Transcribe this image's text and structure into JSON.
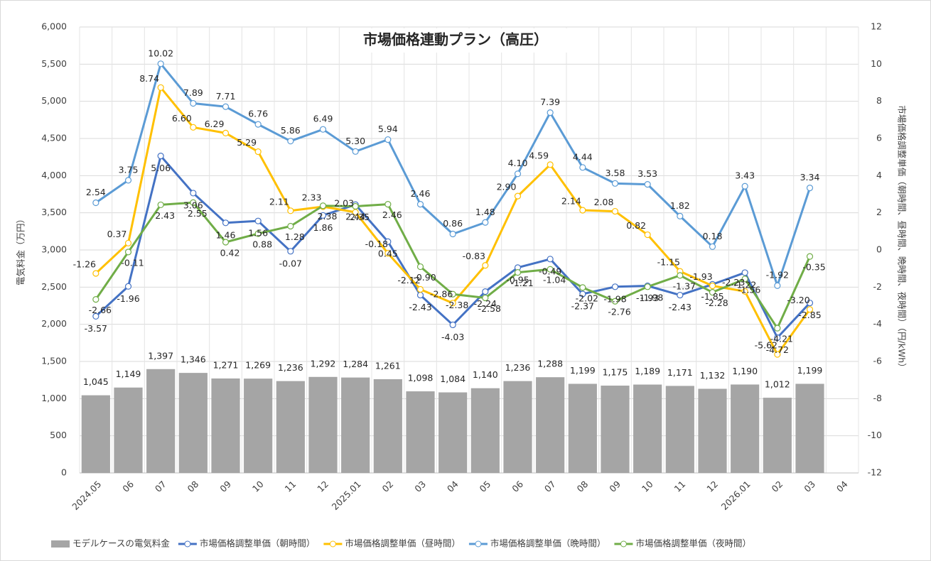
{
  "chart_data": {
    "type": "bar",
    "title": "市場価格連動プラン（高圧）",
    "y_label": "電気料金（万円）",
    "y2_label": "市場価格調整単価（朝時間、昼時間、晩時間、夜時間）（円/kWh）",
    "categories": [
      "2024.05",
      "06",
      "07",
      "08",
      "09",
      "10",
      "11",
      "12",
      "2025.01",
      "02",
      "03",
      "04",
      "05",
      "06",
      "07",
      "08",
      "09",
      "10",
      "11",
      "12",
      "2026.01",
      "02",
      "03",
      "04"
    ],
    "ylim": [
      0,
      6000
    ],
    "yticks": [
      0,
      500,
      {
        "value": 1000,
        "label": "1,000"
      },
      {
        "value": 1500,
        "label": "1,500"
      },
      {
        "value": 2000,
        "label": "2,000"
      },
      {
        "value": 2500,
        "label": "2,500"
      },
      {
        "value": 3000,
        "label": "3,000"
      },
      {
        "value": 3500,
        "label": "3,500"
      },
      {
        "value": 4000,
        "label": "4,000"
      },
      {
        "value": 4500,
        "label": "4,500"
      },
      {
        "value": 5000,
        "label": "5,000"
      },
      {
        "value": 5500,
        "label": "5,500"
      },
      {
        "value": 6000,
        "label": "6,000"
      }
    ],
    "y2lim": [
      -12,
      12
    ],
    "y2ticks": [
      -12,
      -10,
      -8,
      -6,
      -4,
      -2,
      0,
      2,
      4,
      6,
      8,
      10,
      12
    ],
    "grid": true,
    "legend": "bottom",
    "series": [
      {
        "name": "モデルケースの電気料金",
        "type": "bar",
        "color": "#a5a5a5",
        "values": [
          1045,
          1149,
          1397,
          1346,
          1271,
          1269,
          1236,
          1292,
          1284,
          1261,
          1098,
          1084,
          1140,
          1236,
          1288,
          1199,
          1175,
          1189,
          1171,
          1132,
          1190,
          1012,
          1199,
          null
        ],
        "value_labels": [
          "1,045",
          "1,149",
          "1,397",
          "1,346",
          "1,271",
          "1,269",
          "1,236",
          "1,292",
          "1,284",
          "1,261",
          "1,098",
          "1,084",
          "1,140",
          "1,236",
          "1,288",
          "1,199",
          "1,175",
          "1,189",
          "1,171",
          "1,132",
          "1,190",
          "1,012",
          "1,199",
          null
        ]
      },
      {
        "name": "市場価格調整単価（朝時間）",
        "type": "line",
        "axis": "y2",
        "color": "#4472c4",
        "values": [
          -3.57,
          -1.96,
          5.06,
          3.06,
          1.46,
          1.56,
          -0.07,
          1.86,
          2.44,
          0.45,
          -2.43,
          -4.03,
          -2.24,
          -0.95,
          -0.49,
          -2.37,
          -1.98,
          -1.93,
          -2.43,
          -1.85,
          -1.22,
          -4.72,
          -2.85,
          null
        ],
        "value_labels": [
          "-3.57",
          "-1.96",
          "5.06",
          "3.06",
          "1.46",
          "1.56",
          "-0.07",
          "1.86",
          "2.44",
          "0.45",
          "-2.43",
          "-4.03",
          "-2.24",
          "-0.95",
          "-0.49",
          "-2.37",
          "-1.98",
          "-1.93",
          "-2.43",
          "-1.85",
          "-1.22",
          "-4.72",
          "-2.85",
          null
        ]
      },
      {
        "name": "市場価格調整単価（昼時間）",
        "type": "line",
        "axis": "y2",
        "color": "#ffc000",
        "values": [
          -1.26,
          0.37,
          8.74,
          6.6,
          6.29,
          5.29,
          2.11,
          2.33,
          2.03,
          -0.18,
          -2.12,
          -2.86,
          -0.83,
          2.9,
          4.59,
          2.14,
          2.08,
          0.82,
          -1.15,
          -1.93,
          -2.23,
          -5.62,
          -3.2,
          null
        ],
        "value_labels": [
          "-1.26",
          "0.37",
          "8.74",
          "6.60",
          "6.29",
          "5.29",
          "2.11",
          "2.33",
          "2.03",
          "-0.18",
          "-2.12",
          "-2.86",
          "-0.83",
          "2.90",
          "4.59",
          "2.14",
          "2.08",
          "0.82",
          "-1.15",
          "-1.93",
          "-2.23",
          "-5.62",
          "-3.20",
          null
        ]
      },
      {
        "name": "市場価格調整単価（晩時間）",
        "type": "line",
        "axis": "y2",
        "color": "#5b9bd5",
        "values": [
          2.54,
          3.75,
          10.02,
          7.89,
          7.71,
          6.76,
          5.86,
          6.49,
          5.3,
          5.94,
          2.46,
          0.86,
          1.48,
          4.1,
          7.39,
          4.44,
          3.58,
          3.53,
          1.82,
          0.18,
          3.43,
          -1.92,
          3.34,
          null
        ],
        "value_labels": [
          "2.54",
          "3.75",
          "10.02",
          "7.89",
          "7.71",
          "6.76",
          "5.86",
          "6.49",
          "5.30",
          "5.94",
          "2.46",
          "0.86",
          "1.48",
          "4.10",
          "7.39",
          "4.44",
          "3.58",
          "3.53",
          "1.82",
          "0.18",
          "3.43",
          "-1.92",
          "3.34",
          null
        ]
      },
      {
        "name": "市場価格調整単価（夜時間）",
        "type": "line",
        "axis": "y2",
        "color": "#70ad47",
        "values": [
          -2.66,
          -0.11,
          2.43,
          2.55,
          0.42,
          0.88,
          1.28,
          2.38,
          2.35,
          2.46,
          -0.9,
          -2.38,
          -2.58,
          -1.21,
          -1.04,
          -2.02,
          -2.76,
          -1.98,
          -1.37,
          -2.28,
          -1.56,
          -4.21,
          -0.35,
          null
        ],
        "value_labels": [
          "-2.66",
          "-0.11",
          "2.43",
          "2.55",
          "0.42",
          "0.88",
          "1.28",
          "2.38",
          "2.35",
          "2.46",
          "-0.90",
          "-2.38",
          "-2.58",
          "-1.21",
          "-1.04",
          "-2.02",
          "-2.76",
          "-1.98",
          "-1.37",
          "-2.28",
          "-1.56",
          "-4.21",
          "-0.35",
          null
        ]
      }
    ]
  }
}
